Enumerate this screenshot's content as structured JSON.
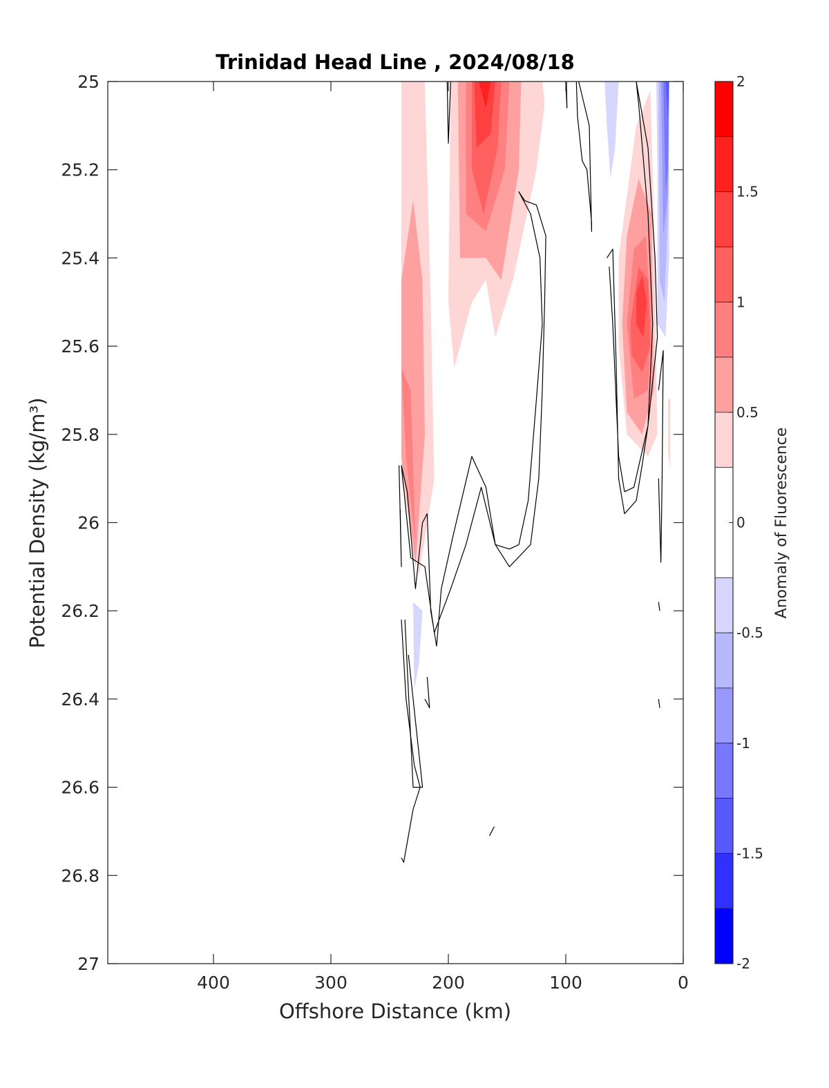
{
  "chart_data": {
    "type": "heatmap",
    "title": "Trinidad Head Line , 2024/08/18",
    "xlabel": "Offshore Distance (km)",
    "ylabel": "Potential Density (kg/m³)",
    "xlim": [
      490,
      0
    ],
    "ylim": [
      25,
      27
    ],
    "x_reversed": true,
    "y_reversed": true,
    "xticks": [
      "400",
      "300",
      "200",
      "100",
      "0"
    ],
    "xtick_values": [
      400,
      300,
      200,
      100,
      0
    ],
    "yticks": [
      "25",
      "25.2",
      "25.4",
      "25.6",
      "25.8",
      "26",
      "26.2",
      "26.4",
      "26.6",
      "26.8",
      "27"
    ],
    "ytick_values": [
      25,
      25.2,
      25.4,
      25.6,
      25.8,
      26,
      26.2,
      26.4,
      26.6,
      26.8,
      27
    ],
    "colorbar": {
      "label": "Anomaly of Fluorescence",
      "range": [
        -2,
        2
      ],
      "ticks": [
        "2",
        "1.5",
        "1",
        "0.5",
        "0",
        "-0.5",
        "-1",
        "-1.5",
        "-2"
      ],
      "tick_values": [
        2,
        1.5,
        1,
        0.5,
        0,
        -0.5,
        -1,
        -1.5,
        -2
      ],
      "levels": [
        {
          "from": 1.75,
          "to": 2.0,
          "color": "#ff0000"
        },
        {
          "from": 1.5,
          "to": 1.75,
          "color": "#ff2020"
        },
        {
          "from": 1.25,
          "to": 1.5,
          "color": "#ff4040"
        },
        {
          "from": 1.0,
          "to": 1.25,
          "color": "#ff6060"
        },
        {
          "from": 0.75,
          "to": 1.0,
          "color": "#ff8080"
        },
        {
          "from": 0.5,
          "to": 0.75,
          "color": "#ffa0a0"
        },
        {
          "from": 0.25,
          "to": 0.5,
          "color": "#ffd6d6"
        },
        {
          "from": -0.25,
          "to": 0.25,
          "color": "#ffffff"
        },
        {
          "from": -0.5,
          "to": -0.25,
          "color": "#d6d6ff"
        },
        {
          "from": -0.75,
          "to": -0.5,
          "color": "#b8b8ff"
        },
        {
          "from": -1.0,
          "to": -0.75,
          "color": "#9898ff"
        },
        {
          "from": -1.25,
          "to": -1.0,
          "color": "#7878ff"
        },
        {
          "from": -1.5,
          "to": -1.25,
          "color": "#5858ff"
        },
        {
          "from": -1.75,
          "to": -1.5,
          "color": "#3030ff"
        },
        {
          "from": -2.0,
          "to": -1.75,
          "color": "#0000ff"
        }
      ]
    },
    "filled_regions": [
      {
        "level": 0.25,
        "color": "#ffd6d6",
        "points": [
          [
            240,
            25
          ],
          [
            220,
            25
          ],
          [
            215,
            25.5
          ],
          [
            212,
            25.9
          ],
          [
            225,
            26.12
          ],
          [
            240,
            25.9
          ]
        ]
      },
      {
        "level": 0.5,
        "color": "#ffa0a0",
        "points": [
          [
            240,
            25.45
          ],
          [
            230,
            25.27
          ],
          [
            222,
            25.45
          ],
          [
            220,
            25.8
          ],
          [
            228,
            26.1
          ],
          [
            240,
            25.85
          ]
        ]
      },
      {
        "level": 0.75,
        "color": "#ff8080",
        "points": [
          [
            240,
            25.65
          ],
          [
            232,
            25.7
          ],
          [
            228,
            26.05
          ],
          [
            236,
            25.85
          ]
        ]
      },
      {
        "level": 0.25,
        "color": "#ffd6d6",
        "points": [
          [
            198,
            25
          ],
          [
            120,
            25
          ],
          [
            118,
            25.05
          ],
          [
            125,
            25.2
          ],
          [
            145,
            25.45
          ],
          [
            160,
            25.58
          ],
          [
            168,
            25.45
          ],
          [
            180,
            25.5
          ],
          [
            195,
            25.65
          ],
          [
            200,
            25.5
          ]
        ]
      },
      {
        "level": 0.5,
        "color": "#ffa0a0",
        "points": [
          [
            192,
            25
          ],
          [
            138,
            25
          ],
          [
            140,
            25.2
          ],
          [
            155,
            25.45
          ],
          [
            168,
            25.4
          ],
          [
            190,
            25.4
          ]
        ]
      },
      {
        "level": 0.75,
        "color": "#ff8080",
        "points": [
          [
            185,
            25
          ],
          [
            148,
            25
          ],
          [
            152,
            25.2
          ],
          [
            168,
            25.34
          ],
          [
            185,
            25.3
          ]
        ]
      },
      {
        "level": 1.0,
        "color": "#ff6060",
        "points": [
          [
            180,
            25
          ],
          [
            155,
            25
          ],
          [
            158,
            25.15
          ],
          [
            170,
            25.3
          ],
          [
            180,
            25.2
          ]
        ]
      },
      {
        "level": 1.25,
        "color": "#ff4040",
        "points": [
          [
            178,
            25
          ],
          [
            160,
            25
          ],
          [
            164,
            25.12
          ],
          [
            176,
            25.15
          ]
        ]
      },
      {
        "level": 1.5,
        "color": "#ff2020",
        "points": [
          [
            174,
            25
          ],
          [
            164,
            25
          ],
          [
            168,
            25.06
          ]
        ]
      },
      {
        "level": 0.25,
        "color": "#ffd6d6",
        "points": [
          [
            55,
            25.6
          ],
          [
            55,
            25.4
          ],
          [
            40,
            25.1
          ],
          [
            28,
            25.02
          ],
          [
            25,
            25.3
          ],
          [
            22,
            25.8
          ],
          [
            30,
            25.85
          ],
          [
            48,
            25.8
          ]
        ]
      },
      {
        "level": 0.5,
        "color": "#ffa0a0",
        "points": [
          [
            52,
            25.55
          ],
          [
            48,
            25.35
          ],
          [
            38,
            25.22
          ],
          [
            27,
            25.3
          ],
          [
            25,
            25.7
          ],
          [
            35,
            25.8
          ],
          [
            48,
            25.75
          ]
        ]
      },
      {
        "level": 0.75,
        "color": "#ff8080",
        "points": [
          [
            48,
            25.55
          ],
          [
            42,
            25.38
          ],
          [
            32,
            25.35
          ],
          [
            27,
            25.55
          ],
          [
            30,
            25.7
          ],
          [
            42,
            25.72
          ]
        ]
      },
      {
        "level": 1.0,
        "color": "#ff6060",
        "points": [
          [
            45,
            25.55
          ],
          [
            38,
            25.42
          ],
          [
            30,
            25.45
          ],
          [
            28,
            25.6
          ],
          [
            35,
            25.66
          ],
          [
            44,
            25.62
          ]
        ]
      },
      {
        "level": 1.25,
        "color": "#ff4040",
        "points": [
          [
            40,
            25.48
          ],
          [
            35,
            25.44
          ],
          [
            31,
            25.5
          ],
          [
            34,
            25.58
          ],
          [
            40,
            25.55
          ]
        ]
      },
      {
        "level": -0.25,
        "color": "#d6d6ff",
        "points": [
          [
            67,
            25
          ],
          [
            55,
            25
          ],
          [
            58,
            25.15
          ],
          [
            62,
            25.22
          ],
          [
            65,
            25.1
          ]
        ]
      },
      {
        "level": -0.25,
        "color": "#d6d6ff",
        "points": [
          [
            23,
            25
          ],
          [
            12,
            25
          ],
          [
            12,
            25.4
          ],
          [
            15,
            25.58
          ],
          [
            22,
            25.55
          ],
          [
            22,
            25.2
          ]
        ]
      },
      {
        "level": -0.5,
        "color": "#b8b8ff",
        "points": [
          [
            21,
            25
          ],
          [
            12,
            25
          ],
          [
            13,
            25.3
          ],
          [
            16,
            25.5
          ],
          [
            20,
            25.45
          ]
        ]
      },
      {
        "level": -0.75,
        "color": "#9898ff",
        "points": [
          [
            19,
            25
          ],
          [
            12,
            25
          ],
          [
            13,
            25.25
          ],
          [
            17,
            25.35
          ],
          [
            18,
            25.15
          ]
        ]
      },
      {
        "level": -1.0,
        "color": "#7878ff",
        "points": [
          [
            17,
            25
          ],
          [
            12,
            25
          ],
          [
            13,
            25.2
          ],
          [
            15,
            25.25
          ]
        ]
      },
      {
        "level": -1.25,
        "color": "#5858ff",
        "points": [
          [
            15,
            25
          ],
          [
            12,
            25
          ],
          [
            13,
            25.08
          ]
        ]
      },
      {
        "level": -0.25,
        "color": "#d6d6ff",
        "points": [
          [
            230,
            26.18
          ],
          [
            222,
            26.2
          ],
          [
            225,
            26.32
          ],
          [
            229,
            26.38
          ]
        ]
      },
      {
        "level": 0.25,
        "color": "#ffd6d6",
        "points": [
          [
            13,
            25.72
          ],
          [
            11,
            25.72
          ],
          [
            11,
            25.88
          ],
          [
            13,
            25.84
          ]
        ]
      }
    ],
    "contours": [
      {
        "points": [
          [
            201,
            25
          ],
          [
            200,
            25.14
          ],
          [
            198,
            25
          ]
        ]
      },
      {
        "points": [
          [
            100,
            25
          ],
          [
            99,
            25.06
          ],
          [
            99.5,
            25
          ]
        ]
      },
      {
        "points": [
          [
            91,
            25
          ],
          [
            90,
            25.08
          ],
          [
            86,
            25.18
          ],
          [
            82,
            25.2
          ],
          [
            78,
            25.32
          ],
          [
            78,
            25.34
          ],
          [
            80,
            25.1
          ],
          [
            89,
            25
          ]
        ]
      },
      {
        "points": [
          [
            242,
            25.87
          ],
          [
            240,
            26.1
          ],
          [
            241,
            25.97
          ]
        ]
      },
      {
        "points": [
          [
            240,
            25.87
          ],
          [
            235,
            25.93
          ],
          [
            228,
            26.15
          ],
          [
            222,
            26.0
          ],
          [
            218,
            25.98
          ],
          [
            215,
            26.2
          ],
          [
            210,
            26.28
          ],
          [
            206,
            26.15
          ],
          [
            196,
            26.03
          ],
          [
            180,
            25.85
          ],
          [
            168,
            25.92
          ],
          [
            160,
            26.05
          ],
          [
            148,
            26.06
          ],
          [
            140,
            26.05
          ],
          [
            132,
            25.95
          ],
          [
            125,
            25.72
          ],
          [
            120,
            25.55
          ],
          [
            122,
            25.4
          ],
          [
            130,
            25.3
          ],
          [
            140,
            25.25
          ],
          [
            135,
            25.27
          ],
          [
            125,
            25.28
          ],
          [
            117,
            25.35
          ],
          [
            118,
            25.5
          ],
          [
            120,
            25.7
          ],
          [
            123,
            25.9
          ],
          [
            130,
            26.05
          ],
          [
            148,
            26.1
          ],
          [
            160,
            26.05
          ],
          [
            172,
            25.92
          ],
          [
            185,
            26.05
          ],
          [
            198,
            26.15
          ],
          [
            212,
            26.25
          ],
          [
            220,
            26.1
          ],
          [
            232,
            26.08
          ],
          [
            240,
            25.87
          ]
        ]
      },
      {
        "points": [
          [
            237,
            26.22
          ],
          [
            230,
            26.6
          ],
          [
            222,
            26.6
          ],
          [
            228,
            26.45
          ],
          [
            234,
            26.3
          ]
        ]
      },
      {
        "points": [
          [
            240,
            26.22
          ],
          [
            236,
            26.4
          ],
          [
            229,
            26.55
          ],
          [
            224,
            26.6
          ],
          [
            230,
            26.65
          ],
          [
            238,
            26.77
          ],
          [
            240,
            26.76
          ]
        ]
      },
      {
        "points": [
          [
            218,
            26.35
          ],
          [
            216,
            26.42
          ],
          [
            220,
            26.4
          ]
        ]
      },
      {
        "points": [
          [
            165,
            26.71
          ],
          [
            161,
            26.69
          ],
          [
            163,
            26.7
          ]
        ]
      },
      {
        "points": [
          [
            65,
            25.4
          ],
          [
            60,
            25.38
          ],
          [
            57,
            25.65
          ],
          [
            55,
            25.9
          ],
          [
            50,
            25.98
          ],
          [
            40,
            25.95
          ],
          [
            35,
            25.87
          ],
          [
            30,
            25.78
          ],
          [
            22,
            25.58
          ],
          [
            24,
            25.4
          ],
          [
            30,
            25.15
          ],
          [
            40,
            25.0
          ],
          [
            38,
            25.05
          ],
          [
            30,
            25.3
          ],
          [
            26,
            25.55
          ],
          [
            30,
            25.78
          ],
          [
            42,
            25.92
          ],
          [
            50,
            25.93
          ],
          [
            55,
            25.85
          ],
          [
            60,
            25.55
          ],
          [
            63,
            25.42
          ]
        ]
      },
      {
        "points": [
          [
            21,
            25.7
          ],
          [
            17,
            25.61
          ],
          [
            18,
            25.9
          ],
          [
            19,
            26.09
          ],
          [
            21,
            25.9
          ]
        ]
      },
      {
        "points": [
          [
            21,
            26.18
          ],
          [
            20,
            26.2
          ]
        ]
      },
      {
        "points": [
          [
            21,
            26.4
          ],
          [
            20,
            26.42
          ]
        ]
      }
    ]
  }
}
